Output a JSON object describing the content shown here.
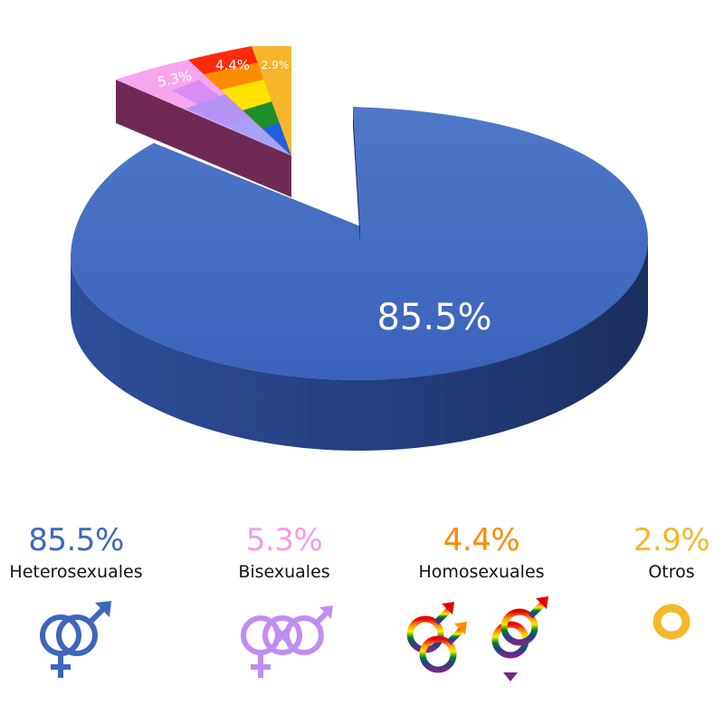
{
  "chart_data": {
    "type": "pie",
    "categories": [
      "Heterosexuales",
      "Bisexuales",
      "Homosexuales",
      "Otros"
    ],
    "values": [
      85.5,
      5.3,
      4.4,
      2.9
    ],
    "labels": [
      "85.5%",
      "5.3%",
      "4.4%",
      "2.9%"
    ],
    "colors": [
      "#3d66be",
      "#f59be9",
      "#ff8a00",
      "#f5b829"
    ]
  },
  "legend": [
    {
      "value": "85.5%",
      "label": "Heterosexuales",
      "color": "#3d66be",
      "icon": "heterosexual-symbol-icon"
    },
    {
      "value": "5.3%",
      "label": "Bisexuales",
      "color": "#f59be9",
      "icon": "bisexual-symbol-icon"
    },
    {
      "value": "4.4%",
      "label": "Homosexuales",
      "color": "#ff8a00",
      "icon": "gay-lesbian-symbols-icon"
    },
    {
      "value": "2.9%",
      "label": "Otros",
      "color": "#f5b829",
      "icon": "other-circle-icon"
    }
  ]
}
